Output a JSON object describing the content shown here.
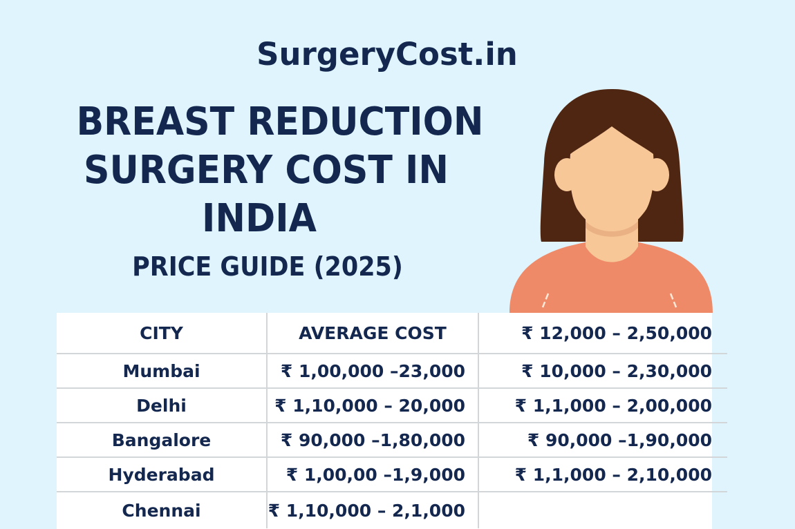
{
  "brand": "SurgeryCost.in",
  "title": {
    "line1": "BREAST REDUCTION",
    "line2": "SURGERY COST IN",
    "line3": "INDIA",
    "subtitle": "PRICE GUIDE (2025)"
  },
  "illustration": {
    "icon": "woman-avatar-icon",
    "colors": {
      "hair": "#4f2612",
      "skin": "#f7c798",
      "shirt": "#ef8a68",
      "background": "#dff4fd"
    }
  },
  "table": {
    "headers": [
      "CITY",
      "AVERAGE COST",
      "₹ 12,000 – 2,50,000"
    ],
    "rows": [
      {
        "city": "Mumbai",
        "average_cost": "₹ 1,00,000 –23,000",
        "range": "₹ 10,000 – 2,30,000"
      },
      {
        "city": "Delhi",
        "average_cost": "₹ 1,10,000 – 20,000",
        "range": "₹ 1,1,000 – 2,00,000"
      },
      {
        "city": "Bangalore",
        "average_cost": "₹ 90,000 –1,80,000",
        "range": "₹ 90,000 –1,90,000"
      },
      {
        "city": "Hyderabad",
        "average_cost": "₹ 1,00,00 –1,9,000",
        "range": "₹ 1,1,000 – 2,10,000"
      },
      {
        "city": "Chennai",
        "average_cost": "₹ 1,10,000 – 2,1,000",
        "range": ""
      }
    ]
  }
}
